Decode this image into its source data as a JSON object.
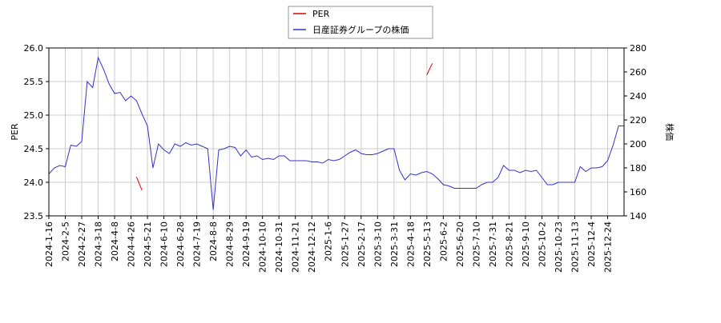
{
  "chart_data": {
    "type": "line",
    "categories": [
      "2024-1-16",
      null,
      null,
      "2024-2-5",
      null,
      null,
      "2024-2-27",
      null,
      null,
      "2024-3-18",
      null,
      null,
      "2024-4-8",
      null,
      null,
      "2024-4-26",
      null,
      null,
      "2024-5-21",
      null,
      null,
      "2024-6-10",
      null,
      null,
      "2024-6-28",
      null,
      null,
      "2024-7-19",
      null,
      null,
      "2024-8-8",
      null,
      null,
      "2024-8-29",
      null,
      null,
      "2024-9-19",
      null,
      null,
      "2024-10-10",
      null,
      null,
      "2024-10-31",
      null,
      null,
      "2024-11-21",
      null,
      null,
      "2024-12-12",
      null,
      null,
      "2025-1-6",
      null,
      null,
      "2025-1-27",
      null,
      null,
      "2025-2-17",
      null,
      null,
      "2025-3-10",
      null,
      null,
      "2025-3-31",
      null,
      null,
      "2025-4-18",
      null,
      null,
      "2025-5-13",
      null,
      null,
      "2025-6-2",
      null,
      null,
      "2025-6-20",
      null,
      null,
      "2025-7-10",
      null,
      null,
      "2025-7-31",
      null,
      null,
      "2025-8-21",
      null,
      null,
      "2025-9-10",
      null,
      null,
      "2025-10-2",
      null,
      null,
      "2025-10-23",
      null,
      null,
      "2025-11-13",
      null,
      null,
      "2025-12-4",
      null,
      null,
      "2025-12-24",
      null,
      null,
      null
    ],
    "series": [
      {
        "name": "PER",
        "color": "#dd0000",
        "axis": "y",
        "values": [
          null,
          null,
          null,
          null,
          null,
          null,
          null,
          null,
          null,
          null,
          null,
          null,
          null,
          null,
          null,
          null,
          24.08,
          23.88,
          null,
          null,
          null,
          null,
          null,
          null,
          null,
          null,
          null,
          null,
          null,
          null,
          null,
          null,
          null,
          null,
          null,
          null,
          null,
          null,
          null,
          null,
          null,
          null,
          null,
          null,
          null,
          null,
          null,
          null,
          null,
          null,
          null,
          null,
          null,
          null,
          null,
          null,
          null,
          null,
          null,
          null,
          null,
          null,
          null,
          null,
          null,
          null,
          null,
          null,
          null,
          25.6,
          25.77,
          null,
          null,
          null,
          null,
          null,
          null,
          null,
          null,
          null,
          null,
          null,
          null,
          null,
          null,
          null,
          null,
          null,
          null,
          null,
          null,
          null,
          null,
          null,
          null,
          null,
          null,
          null,
          null,
          null,
          null,
          null,
          null,
          null,
          null,
          null
        ]
      },
      {
        "name": "日産証券グループの株価",
        "color": "#3333cc",
        "axis": "y2",
        "values": [
          175,
          180,
          182,
          181,
          199,
          198,
          202,
          252,
          247,
          272,
          262,
          250,
          242,
          243,
          236,
          240,
          236,
          225,
          215,
          180,
          200,
          195,
          192,
          200,
          198,
          201,
          199,
          200,
          198,
          196,
          145,
          195,
          196,
          198,
          197,
          190,
          195,
          189,
          190,
          187,
          188,
          187,
          190,
          190,
          186,
          186,
          186,
          186,
          185,
          185,
          184,
          187,
          186,
          187,
          190,
          193,
          195,
          192,
          191,
          191,
          192,
          194,
          196,
          196,
          178,
          170,
          175,
          174,
          176,
          177,
          175,
          171,
          166,
          165,
          163,
          163,
          163,
          163,
          163,
          166,
          168,
          168,
          172,
          182,
          178,
          178,
          176,
          178,
          177,
          178,
          172,
          166,
          166,
          168,
          168,
          168,
          168,
          181,
          177,
          180,
          180,
          181,
          186,
          199,
          215,
          215
        ]
      }
    ],
    "ylabel": "PER",
    "y2label": "株価",
    "ylim": [
      23.5,
      26.0
    ],
    "yticks": [
      23.5,
      24.0,
      24.5,
      25.0,
      25.5,
      26.0
    ],
    "y2lim": [
      140,
      280
    ],
    "y2ticks": [
      140,
      160,
      180,
      200,
      220,
      240,
      260,
      280
    ],
    "grid": true,
    "legend": "top"
  }
}
